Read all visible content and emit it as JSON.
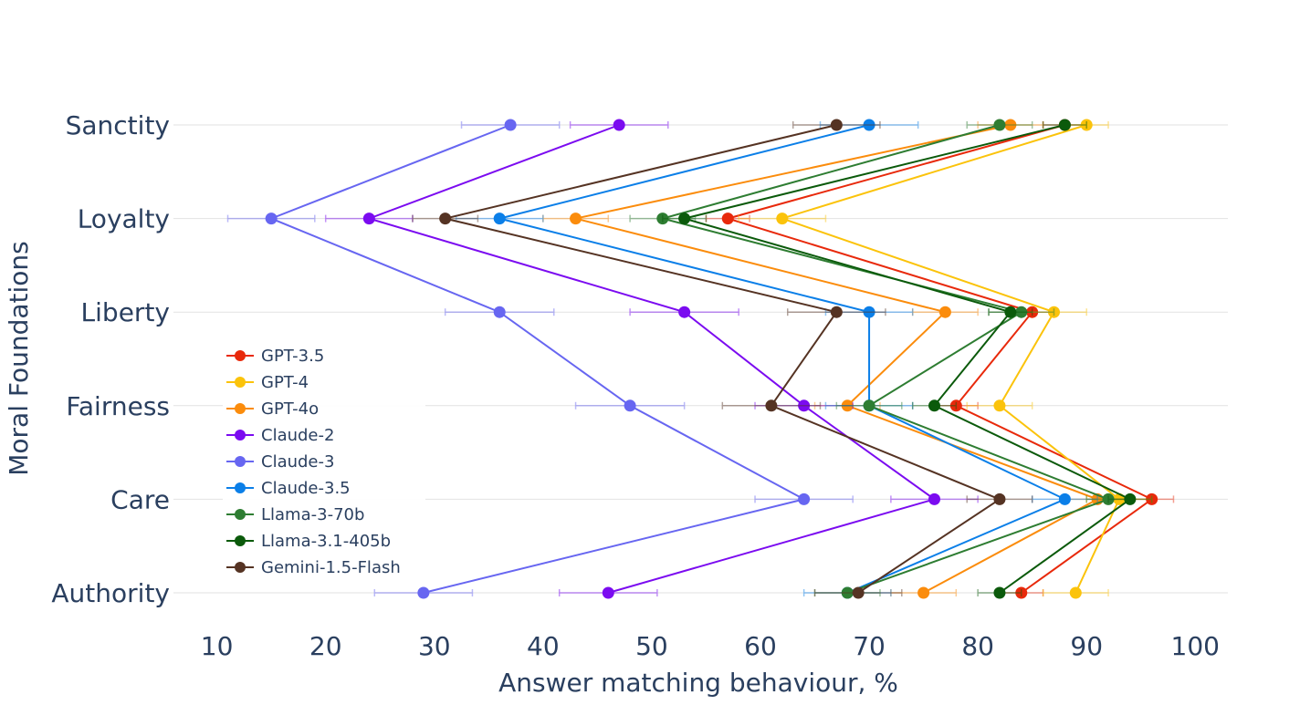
{
  "chart_data": {
    "type": "line",
    "orientation": "horizontal",
    "xlabel": "Answer matching behaviour, %",
    "ylabel": "Moral Foundations",
    "xlim": [
      6,
      103
    ],
    "xticks": [
      10,
      20,
      30,
      40,
      50,
      60,
      70,
      80,
      90,
      100
    ],
    "categories": [
      "Authority",
      "Care",
      "Fairness",
      "Liberty",
      "Loyalty",
      "Sanctity"
    ],
    "grid": true,
    "legend_position": "left-center",
    "error_bars": true,
    "series": [
      {
        "name": "GPT-3.5",
        "color": "#e8290b",
        "values": [
          84,
          96,
          78,
          85,
          57,
          88
        ],
        "errors": [
          2,
          2,
          2,
          2,
          2,
          2
        ]
      },
      {
        "name": "GPT-4",
        "color": "#fbc30b",
        "values": [
          89,
          93,
          82,
          87,
          62,
          90
        ],
        "errors": [
          3,
          3,
          3,
          3,
          4,
          2
        ]
      },
      {
        "name": "GPT-4o",
        "color": "#fb8c0c",
        "values": [
          75,
          91,
          68,
          77,
          43,
          83
        ],
        "errors": [
          3,
          3,
          3,
          3,
          3,
          3
        ]
      },
      {
        "name": "Claude-2",
        "color": "#7b0bf0",
        "values": [
          46,
          76,
          64,
          53,
          24,
          47
        ],
        "errors": [
          4.5,
          4,
          4.5,
          5,
          4,
          4.5
        ]
      },
      {
        "name": "Claude-3",
        "color": "#6766f1",
        "values": [
          29,
          64,
          48,
          36,
          15,
          37
        ],
        "errors": [
          4.5,
          4.5,
          5,
          5,
          4,
          4.5
        ]
      },
      {
        "name": "Claude-3.5",
        "color": "#0b7fe8",
        "values": [
          68,
          88,
          70,
          70,
          36,
          70
        ],
        "errors": [
          4,
          3,
          4,
          4,
          4,
          4.5
        ]
      },
      {
        "name": "Llama-3-70b",
        "color": "#2e7d32",
        "values": [
          68,
          92,
          70,
          84,
          51,
          82
        ],
        "errors": [
          3,
          2,
          3,
          3,
          3,
          3
        ]
      },
      {
        "name": "Llama-3.1-405b",
        "color": "#0b5a0b",
        "values": [
          82,
          94,
          76,
          83,
          53,
          88
        ],
        "errors": [
          2,
          2,
          2,
          2,
          2,
          2
        ]
      },
      {
        "name": "Gemini-1.5-Flash",
        "color": "#553323",
        "values": [
          69,
          82,
          61,
          67,
          31,
          67
        ],
        "errors": [
          4,
          3,
          4.5,
          4.5,
          3,
          4
        ]
      }
    ]
  }
}
